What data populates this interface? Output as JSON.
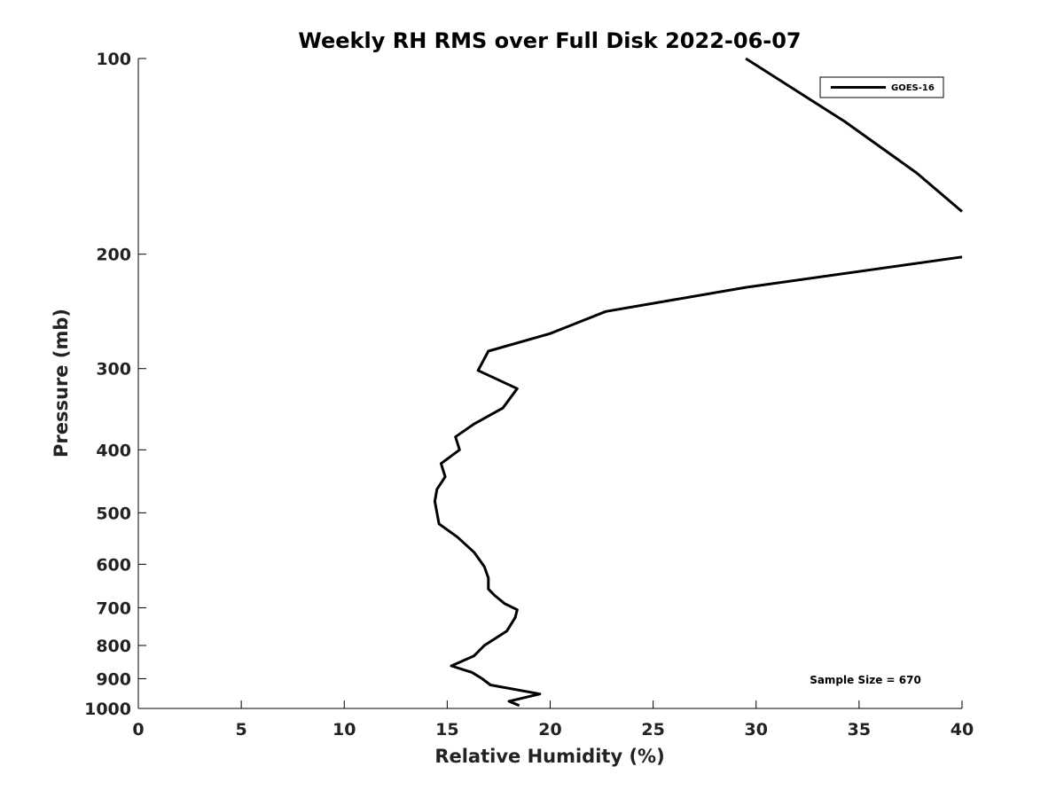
{
  "chart_data": {
    "type": "line",
    "title": "Weekly RH RMS over Full Disk 2022-06-07",
    "xlabel": "Relative Humidity (%)",
    "ylabel": "Pressure (mb)",
    "xlim": [
      0,
      40
    ],
    "ylim": [
      100,
      1000
    ],
    "yscale": "log",
    "y_reversed": true,
    "grid": false,
    "legend_position": "top-right",
    "x_ticks": [
      0,
      5,
      10,
      15,
      20,
      25,
      30,
      35,
      40
    ],
    "y_ticks": [
      100,
      200,
      300,
      400,
      500,
      600,
      700,
      800,
      900,
      1000
    ],
    "annotation": "Sample Size = 670",
    "series": [
      {
        "name": "GOES-16",
        "color": "#000000",
        "segments": [
          {
            "x": [
              29.5,
              34.3,
              37.8,
              40
            ],
            "y": [
              100,
              125,
              150,
              172
            ]
          },
          {
            "x": [
              40,
              29.5,
              22.7,
              20.0,
              17.0,
              16.5,
              18.4,
              17.7,
              16.3,
              15.4,
              15.6,
              14.7,
              14.9,
              14.5,
              14.4,
              14.5,
              14.6,
              15.5,
              16.3,
              16.8,
              17.0,
              17.0,
              17.3,
              17.8,
              18.4,
              18.3,
              17.9,
              16.8,
              16.3,
              15.2,
              16.2,
              16.7,
              17.1,
              19.5,
              18.0,
              18.5
            ],
            "y": [
              202,
              225,
              245,
              265,
              282,
              302,
              322,
              345,
              365,
              382,
              400,
              420,
              440,
              460,
              480,
              500,
              520,
              545,
              575,
              605,
              630,
              655,
              670,
              690,
              705,
              725,
              760,
              800,
              830,
              860,
              880,
              900,
              920,
              950,
              975,
              990
            ]
          }
        ]
      }
    ]
  }
}
